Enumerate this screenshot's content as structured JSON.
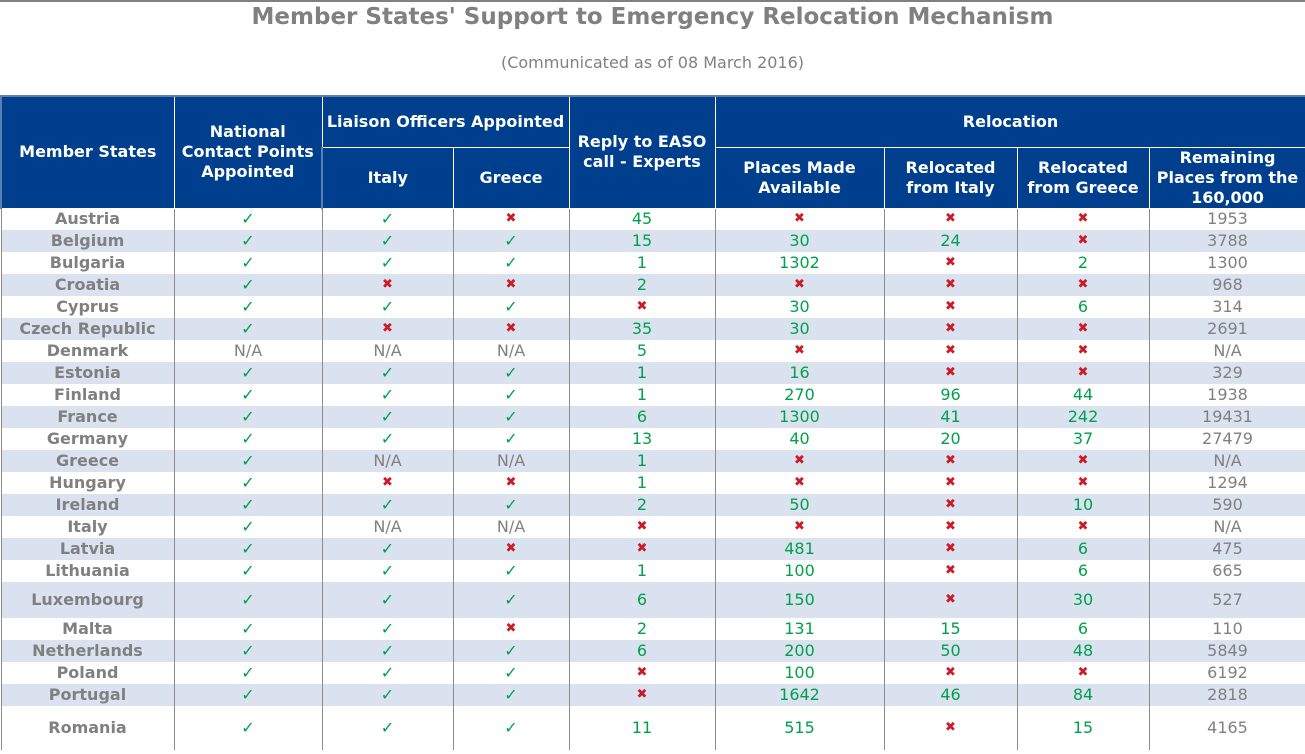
{
  "title": "Member States' Support to Emergency Relocation Mechanism",
  "subtitle": "(Communicated as of 08 March 2016)",
  "headers": {
    "member_states": "Member States",
    "ncp": "National Contact Points Appointed",
    "liaison": "Liaison Officers Appointed",
    "italy": "Italy",
    "greece": "Greece",
    "easo": "Reply to EASO call - Experts",
    "relocation": "Relocation",
    "places": "Places Made Available",
    "rel_italy": "Relocated from Italy",
    "rel_greece": "Relocated from Greece",
    "remaining": "Remaining Places from the 160,000"
  },
  "symbols": {
    "yes": "✓",
    "no": "✖",
    "na": "N/A"
  },
  "rows": [
    {
      "state": "Austria",
      "ncp": "yes",
      "lo_italy": "yes",
      "lo_greece": "no",
      "easo": "45",
      "places": "no",
      "rel_italy": "no",
      "rel_greece": "no",
      "remaining": "1953"
    },
    {
      "state": "Belgium",
      "ncp": "yes",
      "lo_italy": "yes",
      "lo_greece": "yes",
      "easo": "15",
      "places": "30",
      "rel_italy": "24",
      "rel_greece": "no",
      "remaining": "3788"
    },
    {
      "state": "Bulgaria",
      "ncp": "yes",
      "lo_italy": "yes",
      "lo_greece": "yes",
      "easo": "1",
      "places": "1302",
      "rel_italy": "no",
      "rel_greece": "2",
      "remaining": "1300"
    },
    {
      "state": "Croatia",
      "ncp": "yes",
      "lo_italy": "no",
      "lo_greece": "no",
      "easo": "2",
      "places": "no",
      "rel_italy": "no",
      "rel_greece": "no",
      "remaining": "968"
    },
    {
      "state": "Cyprus",
      "ncp": "yes",
      "lo_italy": "yes",
      "lo_greece": "yes",
      "easo": "no",
      "places": "30",
      "rel_italy": "no",
      "rel_greece": "6",
      "remaining": "314"
    },
    {
      "state": "Czech Republic",
      "ncp": "yes",
      "lo_italy": "no",
      "lo_greece": "no",
      "easo": "35",
      "places": "30",
      "rel_italy": "no",
      "rel_greece": "no",
      "remaining": "2691"
    },
    {
      "state": "Denmark",
      "ncp": "na",
      "lo_italy": "na",
      "lo_greece": "na",
      "easo": "5",
      "places": "no",
      "rel_italy": "no",
      "rel_greece": "no",
      "remaining": "N/A"
    },
    {
      "state": "Estonia",
      "ncp": "yes",
      "lo_italy": "yes",
      "lo_greece": "yes",
      "easo": "1",
      "places": "16",
      "rel_italy": "no",
      "rel_greece": "no",
      "remaining": "329"
    },
    {
      "state": "Finland",
      "ncp": "yes",
      "lo_italy": "yes",
      "lo_greece": "yes",
      "easo": "1",
      "places": "270",
      "rel_italy": "96",
      "rel_greece": "44",
      "remaining": "1938"
    },
    {
      "state": "France",
      "ncp": "yes",
      "lo_italy": "yes",
      "lo_greece": "yes",
      "easo": "6",
      "places": "1300",
      "rel_italy": "41",
      "rel_greece": "242",
      "remaining": "19431"
    },
    {
      "state": "Germany",
      "ncp": "yes",
      "lo_italy": "yes",
      "lo_greece": "yes",
      "easo": "13",
      "places": "40",
      "rel_italy": "20",
      "rel_greece": "37",
      "remaining": "27479"
    },
    {
      "state": "Greece",
      "ncp": "yes",
      "lo_italy": "na",
      "lo_greece": "na",
      "easo": "1",
      "places": "no",
      "rel_italy": "no",
      "rel_greece": "no",
      "remaining": "N/A"
    },
    {
      "state": "Hungary",
      "ncp": "yes",
      "lo_italy": "no",
      "lo_greece": "no",
      "easo": "1",
      "places": "no",
      "rel_italy": "no",
      "rel_greece": "no",
      "remaining": "1294"
    },
    {
      "state": "Ireland",
      "ncp": "yes",
      "lo_italy": "yes",
      "lo_greece": "yes",
      "easo": "2",
      "places": "50",
      "rel_italy": "no",
      "rel_greece": "10",
      "remaining": "590"
    },
    {
      "state": "Italy",
      "ncp": "yes",
      "lo_italy": "na",
      "lo_greece": "na",
      "easo": "no",
      "places": "no",
      "rel_italy": "no",
      "rel_greece": "no",
      "remaining": "N/A"
    },
    {
      "state": "Latvia",
      "ncp": "yes",
      "lo_italy": "yes",
      "lo_greece": "no",
      "easo": "no",
      "places": "481",
      "rel_italy": "no",
      "rel_greece": "6",
      "remaining": "475"
    },
    {
      "state": "Lithuania",
      "ncp": "yes",
      "lo_italy": "yes",
      "lo_greece": "yes",
      "easo": "1",
      "places": "100",
      "rel_italy": "no",
      "rel_greece": "6",
      "remaining": "665"
    },
    {
      "state": "Luxembourg",
      "ncp": "yes",
      "lo_italy": "yes",
      "lo_greece": "yes",
      "easo": "6",
      "places": "150",
      "rel_italy": "no",
      "rel_greece": "30",
      "remaining": "527"
    },
    {
      "state": "Malta",
      "ncp": "yes",
      "lo_italy": "yes",
      "lo_greece": "no",
      "easo": "2",
      "places": "131",
      "rel_italy": "15",
      "rel_greece": "6",
      "remaining": "110"
    },
    {
      "state": "Netherlands",
      "ncp": "yes",
      "lo_italy": "yes",
      "lo_greece": "yes",
      "easo": "6",
      "places": "200",
      "rel_italy": "50",
      "rel_greece": "48",
      "remaining": "5849"
    },
    {
      "state": "Poland",
      "ncp": "yes",
      "lo_italy": "yes",
      "lo_greece": "yes",
      "easo": "no",
      "places": "100",
      "rel_italy": "no",
      "rel_greece": "no",
      "remaining": "6192"
    },
    {
      "state": "Portugal",
      "ncp": "yes",
      "lo_italy": "yes",
      "lo_greece": "yes",
      "easo": "no",
      "places": "1642",
      "rel_italy": "46",
      "rel_greece": "84",
      "remaining": "2818"
    },
    {
      "state": "Romania",
      "ncp": "yes",
      "lo_italy": "yes",
      "lo_greece": "yes",
      "easo": "11",
      "places": "515",
      "rel_italy": "no",
      "rel_greece": "15",
      "remaining": "4165"
    }
  ]
}
